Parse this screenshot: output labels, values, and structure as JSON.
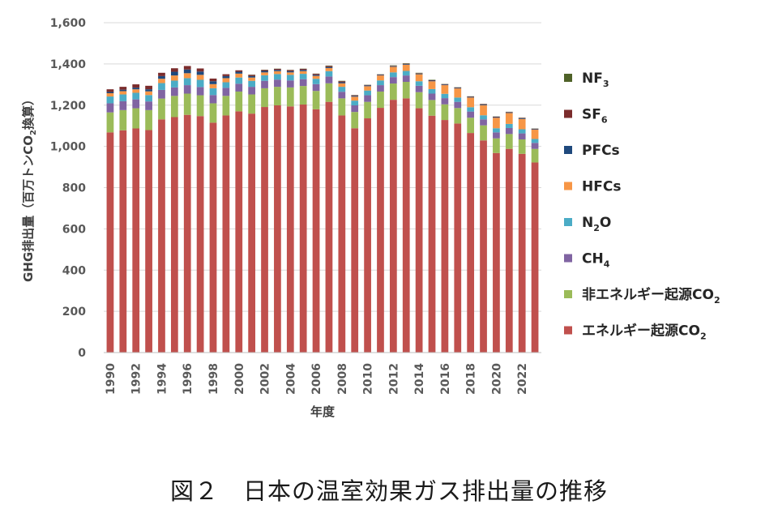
{
  "caption": "図２　日本の温室効果ガス排出量の推移",
  "chart_data": {
    "type": "bar",
    "stacked": true,
    "xlabel": "年度",
    "ylabel": "GHG排出量（百万トンCO₂換算）",
    "ylim": [
      0,
      1600
    ],
    "yticks": [
      0,
      200,
      400,
      600,
      800,
      1000,
      1200,
      1400,
      1600
    ],
    "ytick_labels": [
      "0",
      "200",
      "400",
      "600",
      "800",
      "1,000",
      "1,200",
      "1,400",
      "1,600"
    ],
    "x_tick_labels": [
      "1990",
      "1992",
      "1994",
      "1996",
      "1998",
      "2000",
      "2002",
      "2004",
      "2006",
      "2008",
      "2010",
      "2012",
      "2014",
      "2016",
      "2018",
      "2020",
      "2022"
    ],
    "legend_position": "right",
    "categories": [
      "1990",
      "1991",
      "1992",
      "1993",
      "1994",
      "1995",
      "1996",
      "1997",
      "1998",
      "1999",
      "2000",
      "2001",
      "2002",
      "2003",
      "2004",
      "2005",
      "2006",
      "2007",
      "2008",
      "2009",
      "2010",
      "2011",
      "2012",
      "2013",
      "2014",
      "2015",
      "2016",
      "2017",
      "2018",
      "2019",
      "2020",
      "2021",
      "2022",
      "2023"
    ],
    "series": [
      {
        "name": "エネルギー起源CO2",
        "color": "#c0504d",
        "values": [
          1068,
          1078,
          1087,
          1079,
          1131,
          1142,
          1153,
          1147,
          1115,
          1150,
          1170,
          1159,
          1191,
          1199,
          1194,
          1203,
          1180,
          1216,
          1150,
          1088,
          1136,
          1187,
          1226,
          1233,
          1185,
          1149,
          1128,
          1111,
          1065,
          1029,
          968,
          988,
          964,
          922
        ]
      },
      {
        "name": "非エネルギー起源CO2",
        "color": "#9bbb59",
        "values": [
          97,
          98,
          98,
          97,
          101,
          103,
          103,
          101,
          94,
          95,
          96,
          93,
          91,
          90,
          92,
          90,
          89,
          90,
          83,
          79,
          80,
          79,
          79,
          80,
          78,
          76,
          76,
          75,
          74,
          73,
          71,
          72,
          70,
          66
        ]
      },
      {
        "name": "CH4",
        "color": "#8064a2",
        "values": [
          44,
          43,
          43,
          42,
          42,
          41,
          41,
          40,
          40,
          39,
          38,
          37,
          36,
          35,
          34,
          33,
          33,
          33,
          32,
          32,
          32,
          31,
          31,
          31,
          31,
          31,
          30,
          30,
          30,
          29,
          29,
          29,
          29,
          29
        ]
      },
      {
        "name": "N2O",
        "color": "#4bacc6",
        "values": [
          33,
          33,
          32,
          31,
          33,
          33,
          34,
          35,
          33,
          27,
          30,
          29,
          27,
          27,
          27,
          26,
          26,
          26,
          24,
          23,
          23,
          23,
          23,
          22,
          22,
          22,
          21,
          21,
          21,
          20,
          20,
          20,
          20,
          19
        ]
      },
      {
        "name": "HFCs",
        "color": "#f79646",
        "values": [
          16,
          16,
          17,
          18,
          21,
          25,
          24,
          24,
          20,
          20,
          19,
          16,
          14,
          14,
          12,
          13,
          14,
          15,
          17,
          19,
          21,
          24,
          27,
          30,
          34,
          38,
          42,
          44,
          47,
          49,
          51,
          53,
          50,
          45
        ]
      },
      {
        "name": "PFCs",
        "color": "#1f497d",
        "values": [
          6,
          7,
          8,
          10,
          13,
          18,
          18,
          16,
          14,
          10,
          9,
          7,
          7,
          6,
          6,
          6,
          5,
          5,
          5,
          4,
          4,
          3,
          3,
          3,
          3,
          3,
          3,
          3,
          3,
          3,
          3,
          3,
          3,
          3
        ]
      },
      {
        "name": "SF6",
        "color": "#7b2c2c",
        "values": [
          13,
          14,
          16,
          17,
          16,
          17,
          17,
          15,
          13,
          9,
          7,
          6,
          5,
          5,
          5,
          5,
          5,
          5,
          5,
          3,
          2,
          2,
          2,
          2,
          2,
          2,
          2,
          2,
          2,
          2,
          2,
          2,
          2,
          2
        ]
      },
      {
        "name": "NF3",
        "color": "#4f6228",
        "values": [
          0,
          0,
          0,
          0,
          0,
          0,
          0,
          0,
          0,
          0,
          0,
          1,
          1,
          1,
          1,
          1,
          1,
          2,
          2,
          1,
          1,
          1,
          2,
          2,
          2,
          2,
          1,
          1,
          1,
          1,
          1,
          1,
          1,
          1
        ]
      }
    ],
    "legend": [
      {
        "main": "NF",
        "sub": "3",
        "tail": ""
      },
      {
        "main": "SF",
        "sub": "6",
        "tail": ""
      },
      {
        "main": "PFCs",
        "sub": "",
        "tail": ""
      },
      {
        "main": "HFCs",
        "sub": "",
        "tail": ""
      },
      {
        "main": "N",
        "sub": "2",
        "tail": "O"
      },
      {
        "main": "CH",
        "sub": "4",
        "tail": ""
      },
      {
        "main": "非エネルギー起源CO",
        "sub": "2",
        "tail": ""
      },
      {
        "main": "エネルギー起源CO",
        "sub": "2",
        "tail": ""
      }
    ],
    "ylabel_parts": {
      "main": "GHG排出量（百万トンCO",
      "sub": "2",
      "tail": "換算）"
    }
  }
}
